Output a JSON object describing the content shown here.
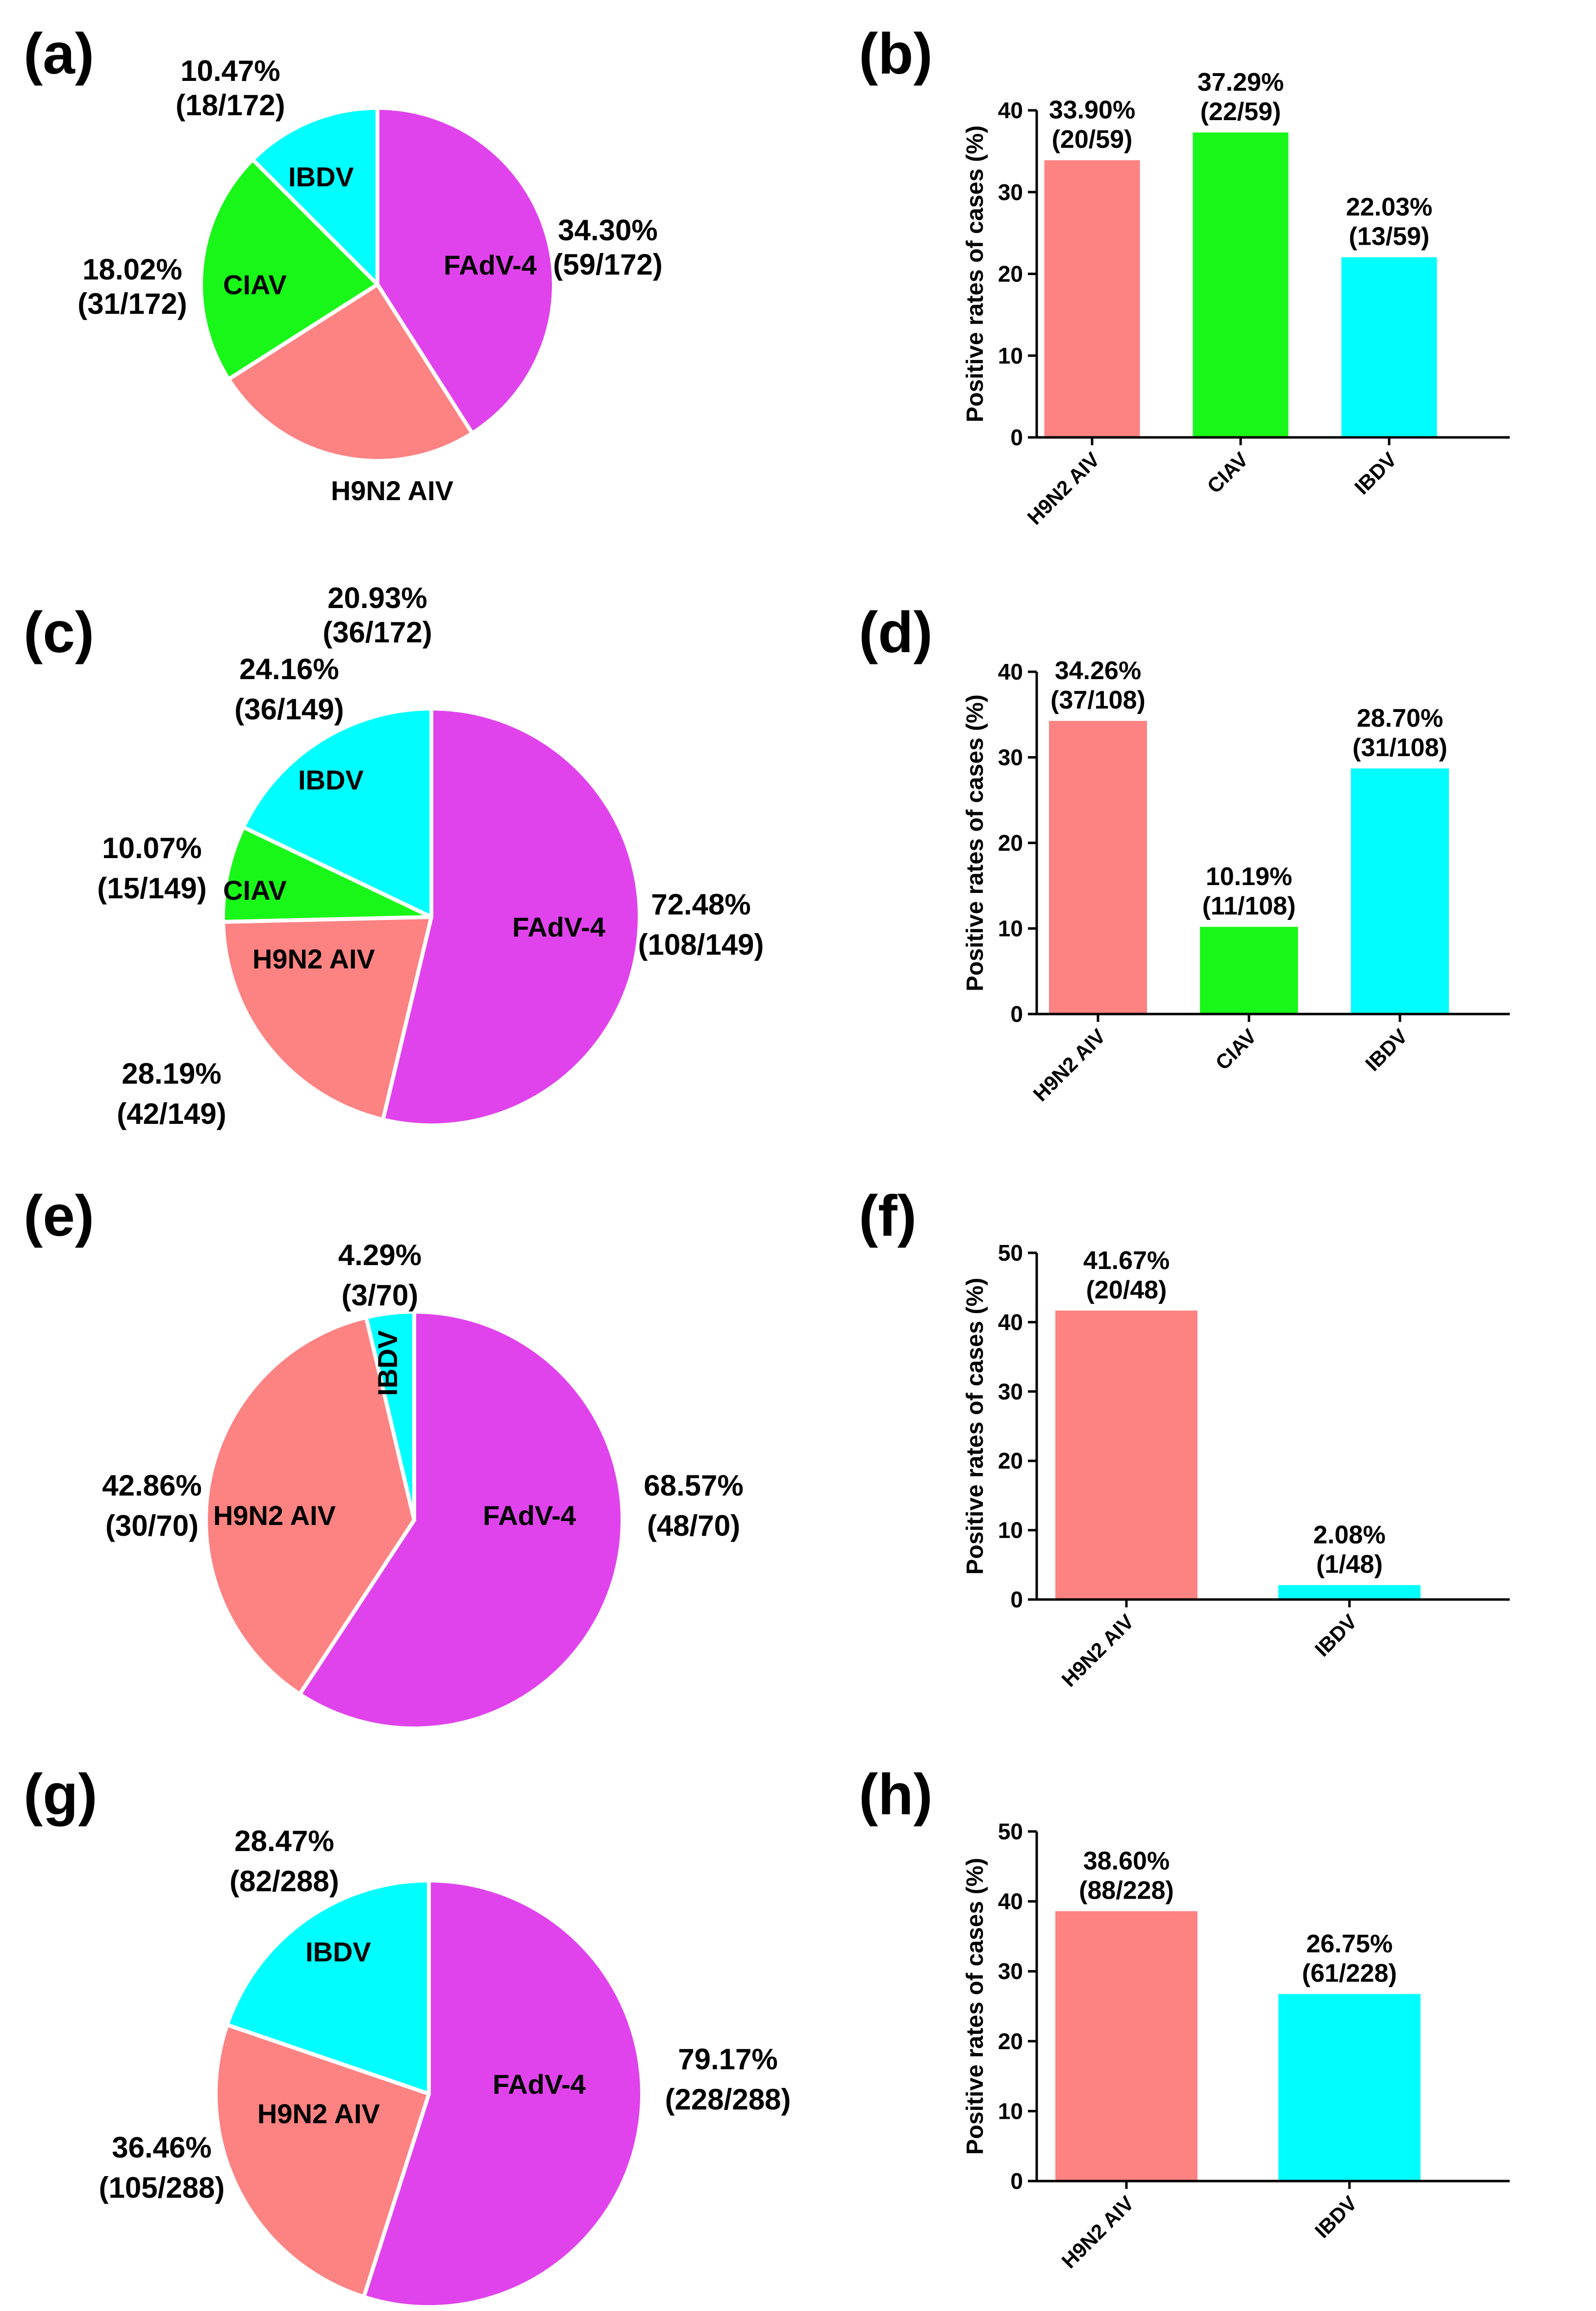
{
  "colors": {
    "FAdV-4": "#e043ec",
    "H9N2 AIV": "#fd8282",
    "CIAV": "#19f719",
    "IBDV": "#01feff"
  },
  "chart_data": [
    {
      "panel": "(a)",
      "type": "pie",
      "slices": [
        {
          "name": "FAdV-4",
          "value": 59,
          "pct": "34.30%",
          "frac": "(59/172)"
        },
        {
          "name": "H9N2 AIV",
          "value": 36,
          "pct": "20.93%",
          "frac": "(36/172)"
        },
        {
          "name": "CIAV",
          "value": 31,
          "pct": "18.02%",
          "frac": "(31/172)"
        },
        {
          "name": "IBDV",
          "value": 18,
          "pct": "10.47%",
          "frac": "(18/172)"
        }
      ]
    },
    {
      "panel": "(b)",
      "type": "bar",
      "ylabel": "Positive rates of cases (%)",
      "ylim": [
        0,
        40
      ],
      "yticks": [
        0,
        10,
        20,
        30,
        40
      ],
      "categories": [
        "H9N2 AIV",
        "CIAV",
        "IBDV"
      ],
      "values": [
        33.9,
        37.29,
        22.03
      ],
      "labels": [
        "33.90%",
        "37.29%",
        "22.03%"
      ],
      "fractions": [
        "(20/59)",
        "(22/59)",
        "(13/59)"
      ]
    },
    {
      "panel": "(c)",
      "type": "pie",
      "slices": [
        {
          "name": "FAdV-4",
          "value": 108,
          "pct": "72.48%",
          "frac": "(108/149)"
        },
        {
          "name": "H9N2 AIV",
          "value": 42,
          "pct": "28.19%",
          "frac": "(42/149)"
        },
        {
          "name": "CIAV",
          "value": 15,
          "pct": "10.07%",
          "frac": "(15/149)"
        },
        {
          "name": "IBDV",
          "value": 36,
          "pct": "24.16%",
          "frac": "(36/149)"
        }
      ]
    },
    {
      "panel": "(d)",
      "type": "bar",
      "ylabel": "Positive rates of cases (%)",
      "ylim": [
        0,
        40
      ],
      "yticks": [
        0,
        10,
        20,
        30,
        40
      ],
      "categories": [
        "H9N2 AIV",
        "CIAV",
        "IBDV"
      ],
      "values": [
        34.26,
        10.19,
        28.7
      ],
      "labels": [
        "34.26%",
        "10.19%",
        "28.70%"
      ],
      "fractions": [
        "(37/108)",
        "(11/108)",
        "(31/108)"
      ]
    },
    {
      "panel": "(e)",
      "type": "pie",
      "slices": [
        {
          "name": "FAdV-4",
          "value": 48,
          "pct": "68.57%",
          "frac": "(48/70)"
        },
        {
          "name": "H9N2 AIV",
          "value": 30,
          "pct": "42.86%",
          "frac": "(30/70)"
        },
        {
          "name": "IBDV",
          "value": 3,
          "pct": "4.29%",
          "frac": "(3/70)"
        }
      ]
    },
    {
      "panel": "(f)",
      "type": "bar",
      "ylabel": "Positive rates of cases (%)",
      "ylim": [
        0,
        50
      ],
      "yticks": [
        0,
        10,
        20,
        30,
        40,
        50
      ],
      "categories": [
        "H9N2 AIV",
        "IBDV"
      ],
      "values": [
        41.67,
        2.08
      ],
      "labels": [
        "41.67%",
        "2.08%"
      ],
      "fractions": [
        "(20/48)",
        "(1/48)"
      ]
    },
    {
      "panel": "(g)",
      "type": "pie",
      "slices": [
        {
          "name": "FAdV-4",
          "value": 228,
          "pct": "79.17%",
          "frac": "(228/288)"
        },
        {
          "name": "H9N2 AIV",
          "value": 105,
          "pct": "36.46%",
          "frac": "(105/288)"
        },
        {
          "name": "IBDV",
          "value": 82,
          "pct": "28.47%",
          "frac": "(82/288)"
        }
      ]
    },
    {
      "panel": "(h)",
      "type": "bar",
      "ylabel": "Positive rates of cases (%)",
      "ylim": [
        0,
        50
      ],
      "yticks": [
        0,
        10,
        20,
        30,
        40,
        50
      ],
      "categories": [
        "H9N2 AIV",
        "IBDV"
      ],
      "values": [
        38.6,
        26.75
      ],
      "labels": [
        "38.60%",
        "26.75%"
      ],
      "fractions": [
        "(88/228)",
        "(61/228)"
      ]
    }
  ]
}
